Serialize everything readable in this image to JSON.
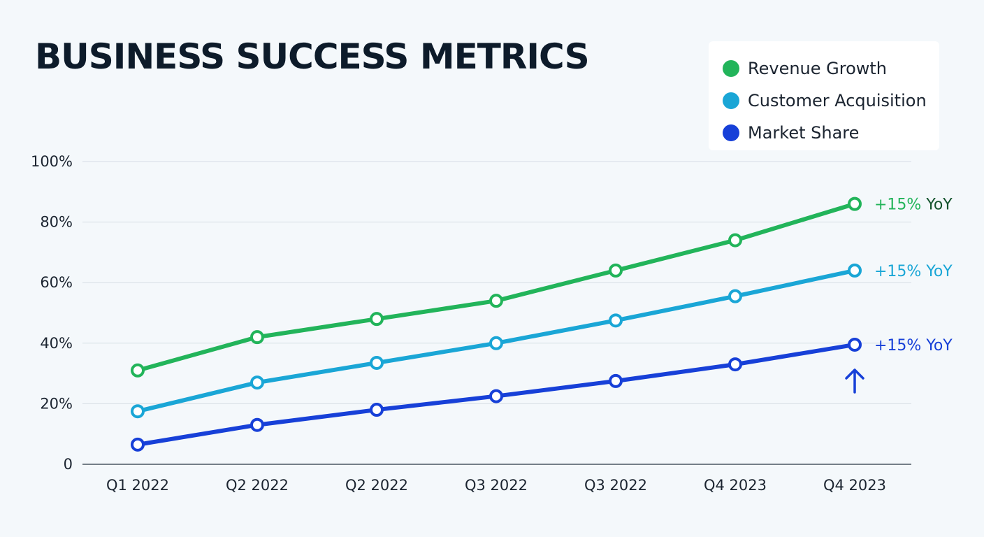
{
  "chart_data": {
    "type": "line",
    "title": "BUSINESS SUCCESS METRICS",
    "categories": [
      "Q1 2022",
      "Q2 2022",
      "Q2 2022",
      "Q3 2022",
      "Q3 2022",
      "Q4 2023",
      "Q4 2023"
    ],
    "yticks": [
      "0",
      "20%",
      "40%",
      "60%",
      "80%",
      "100%"
    ],
    "ytick_values": [
      0,
      20,
      40,
      60,
      80,
      100
    ],
    "ylim": [
      0,
      100
    ],
    "grid": true,
    "legend_placement": "top-right",
    "series": [
      {
        "name": "Revenue Growth",
        "color": "#22b45a",
        "values": [
          31,
          42,
          48,
          54,
          64,
          74,
          86
        ],
        "annotation": {
          "prefix": "+15%",
          "suffix": "YoY",
          "prefix_color": "#22b45a",
          "suffix_color": "#14532d"
        }
      },
      {
        "name": "Customer Acquisition",
        "color": "#1aa6d6",
        "values": [
          17.5,
          27,
          33.5,
          40,
          47.5,
          55.5,
          64
        ],
        "annotation": {
          "prefix": "+15%",
          "suffix": "YoY",
          "prefix_color": "#1aa6d6",
          "suffix_color": "#1aa6d6"
        }
      },
      {
        "name": "Market Share",
        "color": "#1740d8",
        "values": [
          6.5,
          13,
          18,
          22.5,
          27.5,
          33,
          39.5
        ],
        "annotation": {
          "prefix": "+15%",
          "suffix": "YoY",
          "prefix_color": "#1740d8",
          "suffix_color": "#1740d8"
        },
        "trend_arrow": "up"
      }
    ]
  }
}
